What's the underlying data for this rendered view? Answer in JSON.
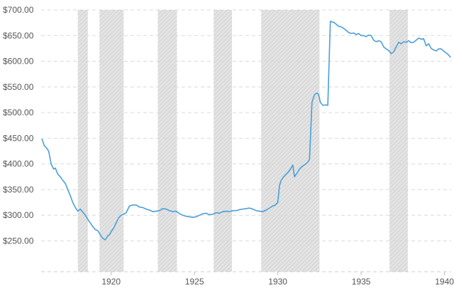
{
  "chart_data": {
    "type": "line",
    "title": "",
    "xlabel": "",
    "ylabel": "",
    "xlim": [
      1915.8,
      1940.4
    ],
    "ylim": [
      190,
      700
    ],
    "grid": true,
    "y_ticks": [
      {
        "value": 700,
        "label": "$700.00"
      },
      {
        "value": 650,
        "label": "$650.00"
      },
      {
        "value": 600,
        "label": "$600.00"
      },
      {
        "value": 550,
        "label": "$550.00"
      },
      {
        "value": 500,
        "label": "$500.00"
      },
      {
        "value": 450,
        "label": "$450.00"
      },
      {
        "value": 400,
        "label": "$400.00"
      },
      {
        "value": 350,
        "label": "$350.00"
      },
      {
        "value": 300,
        "label": "$300.00"
      },
      {
        "value": 250,
        "label": "$250.00"
      }
    ],
    "x_ticks": [
      {
        "value": 1920,
        "label": "1920"
      },
      {
        "value": 1925,
        "label": "1925"
      },
      {
        "value": 1930,
        "label": "1930"
      },
      {
        "value": 1935,
        "label": "1935"
      },
      {
        "value": 1940,
        "label": "1940"
      }
    ],
    "recession_bands": [
      [
        1918.0,
        1918.6
      ],
      [
        1919.3,
        1920.75
      ],
      [
        1922.8,
        1923.95
      ],
      [
        1926.15,
        1927.25
      ],
      [
        1929.0,
        1932.5
      ],
      [
        1936.7,
        1937.8
      ]
    ],
    "colors": {
      "line": "#4a9fd8",
      "band": "#d6d6d6"
    },
    "series": [
      {
        "x": [
          1915.85,
          1916.0,
          1916.1,
          1916.25,
          1916.4,
          1916.55,
          1916.65,
          1916.8,
          1916.95,
          1917.1,
          1917.25,
          1917.4,
          1917.55,
          1917.7,
          1917.85,
          1918.0,
          1918.15,
          1918.3,
          1918.45,
          1918.6,
          1918.75,
          1918.9,
          1919.05,
          1919.2,
          1919.35,
          1919.5,
          1919.65,
          1919.8,
          1919.9,
          1920.0,
          1920.15,
          1920.3,
          1920.45,
          1920.6,
          1920.75,
          1920.9,
          1921.1,
          1921.3,
          1921.5,
          1921.7,
          1921.9,
          1922.1,
          1922.3,
          1922.5,
          1922.7,
          1922.9,
          1923.1,
          1923.3,
          1923.5,
          1923.7,
          1923.9,
          1924.1,
          1924.3,
          1924.5,
          1924.7,
          1924.9,
          1925.1,
          1925.3,
          1925.5,
          1925.7,
          1925.9,
          1926.1,
          1926.3,
          1926.5,
          1926.7,
          1926.9,
          1927.1,
          1927.3,
          1927.5,
          1927.7,
          1927.9,
          1928.1,
          1928.3,
          1928.5,
          1928.7,
          1928.9,
          1929.1,
          1929.3,
          1929.5,
          1929.7,
          1929.85,
          1930.0,
          1930.1,
          1930.2,
          1930.35,
          1930.5,
          1930.65,
          1930.8,
          1930.9,
          1931.0,
          1931.15,
          1931.3,
          1931.45,
          1931.6,
          1931.75,
          1931.9,
          1932.05,
          1932.2,
          1932.35,
          1932.45,
          1932.55,
          1932.7,
          1932.85,
          1933.0,
          1933.15,
          1933.3,
          1933.35,
          1933.5,
          1933.65,
          1933.8,
          1933.95,
          1934.1,
          1934.25,
          1934.4,
          1934.55,
          1934.7,
          1934.85,
          1935.0,
          1935.15,
          1935.3,
          1935.45,
          1935.6,
          1935.75,
          1935.9,
          1936.05,
          1936.2,
          1936.35,
          1936.5,
          1936.65,
          1936.8,
          1936.95,
          1937.1,
          1937.25,
          1937.4,
          1937.55,
          1937.7,
          1937.85,
          1938.0,
          1938.15,
          1938.3,
          1938.45,
          1938.6,
          1938.75,
          1938.9,
          1939.05,
          1939.2,
          1939.35,
          1939.5,
          1939.65,
          1939.8,
          1939.95,
          1940.1,
          1940.25,
          1940.35
        ],
        "y": [
          448,
          435,
          432,
          425,
          400,
          390,
          392,
          380,
          375,
          368,
          362,
          350,
          338,
          325,
          315,
          308,
          312,
          306,
          300,
          292,
          285,
          278,
          272,
          270,
          262,
          255,
          252,
          260,
          262,
          268,
          275,
          285,
          295,
          300,
          302,
          305,
          318,
          320,
          320,
          316,
          315,
          312,
          310,
          307,
          308,
          309,
          313,
          312,
          309,
          307,
          308,
          303,
          300,
          298,
          297,
          296,
          297,
          300,
          303,
          304,
          301,
          302,
          305,
          304,
          307,
          308,
          307,
          309,
          309,
          311,
          312,
          313,
          314,
          312,
          309,
          308,
          307,
          310,
          314,
          318,
          320,
          325,
          358,
          368,
          375,
          380,
          385,
          392,
          398,
          375,
          382,
          390,
          395,
          398,
          402,
          408,
          520,
          535,
          538,
          535,
          520,
          514,
          515,
          514,
          678,
          676,
          676,
          672,
          668,
          667,
          664,
          660,
          656,
          654,
          655,
          652,
          654,
          650,
          650,
          648,
          651,
          650,
          641,
          638,
          640,
          638,
          628,
          624,
          621,
          615,
          618,
          628,
          637,
          634,
          638,
          637,
          640,
          636,
          637,
          641,
          645,
          643,
          644,
          630,
          634,
          625,
          622,
          620,
          624,
          624,
          620,
          616,
          612,
          608
        ]
      }
    ]
  }
}
